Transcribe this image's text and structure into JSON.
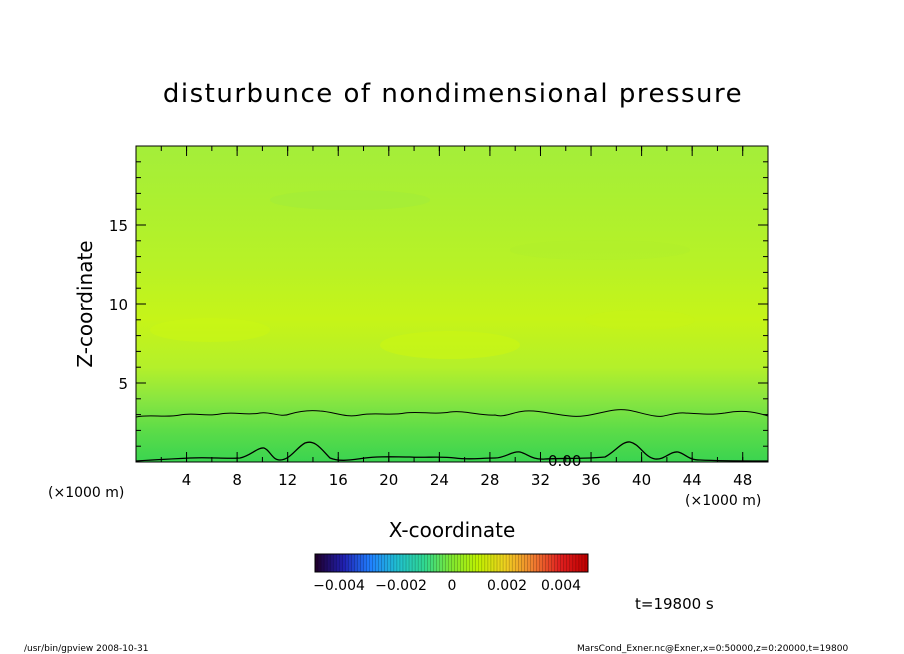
{
  "chart_data": {
    "type": "heatmap",
    "title": "disturbunce of nondimensional pressure",
    "xlabel": "X-coordinate",
    "ylabel": "Z-coordinate",
    "x_unit_left": "(×1000 m)",
    "x_unit_right": "(×1000 m)",
    "xlim": [
      0,
      50
    ],
    "ylim": [
      0,
      20
    ],
    "x_ticks": [
      4,
      8,
      12,
      16,
      20,
      24,
      28,
      32,
      36,
      40,
      44,
      48
    ],
    "y_ticks": [
      5,
      10,
      15
    ],
    "contour_label": "0.00",
    "colorbar": {
      "ticks": [
        -0.004,
        -0.002,
        0,
        0.002,
        0.004
      ],
      "tick_labels": [
        "−0.004",
        "−0.002",
        "0",
        "0.002",
        "0.004"
      ],
      "range": [
        -0.005,
        0.005
      ],
      "colors": [
        "#200030",
        "#2020b0",
        "#2080ff",
        "#20c0d0",
        "#30d890",
        "#7fe830",
        "#c0f000",
        "#f0d020",
        "#f08030",
        "#e02020",
        "#c00000"
      ]
    },
    "field_description_values": {
      "z": [
        0,
        0.5,
        1,
        2,
        3,
        5,
        7,
        9,
        12,
        15,
        18,
        20
      ],
      "value": [
        -0.0012,
        -0.0009,
        -0.0006,
        -0.0003,
        0.0,
        0.0006,
        0.0009,
        0.0008,
        0.0007,
        0.0006,
        0.0006,
        0.0005
      ]
    }
  },
  "time_label": "t=19800 s",
  "footer_left": "/usr/bin/gpview   2008-10-31",
  "footer_right": "MarsCond_Exner.nc@Exner,x=0:50000,z=0:20000,t=19800"
}
